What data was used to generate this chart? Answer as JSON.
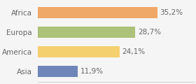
{
  "categories": [
    "Africa",
    "Europa",
    "America",
    "Asia"
  ],
  "values": [
    35.2,
    28.7,
    24.1,
    11.9
  ],
  "bar_colors": [
    "#f0a868",
    "#adc178",
    "#f5d06e",
    "#6e86b8"
  ],
  "labels": [
    "35,2%",
    "28,7%",
    "24,1%",
    "11,9%"
  ],
  "xlim": [
    0,
    46
  ],
  "background_color": "#f5f5f5",
  "label_fontsize": 7.5,
  "tick_fontsize": 7.5,
  "bar_height": 0.55,
  "label_color": "#666666",
  "tick_color": "#666666"
}
